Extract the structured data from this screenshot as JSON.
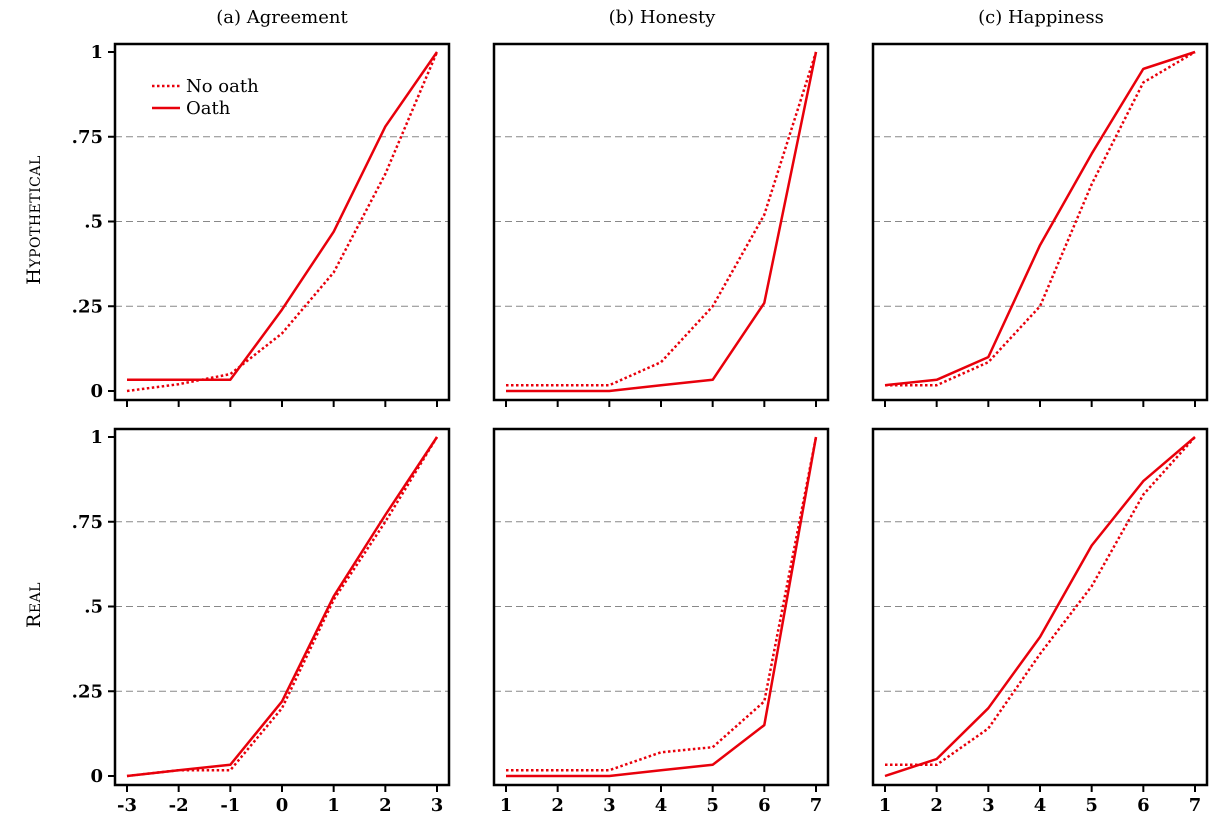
{
  "colors": {
    "series": "#e8000b",
    "grid": "#888888",
    "axis": "#000000"
  },
  "legend": {
    "position": "top-left",
    "entries": [
      {
        "label": "No oath",
        "style": "dotted"
      },
      {
        "label": "Oath",
        "style": "solid"
      }
    ]
  },
  "column_titles": [
    "(a) Agreement",
    "(b) Honesty",
    "(c) Happiness"
  ],
  "row_titles": [
    "Hypothetical",
    "Real"
  ],
  "y_tick_labels": [
    "0",
    ".25",
    ".5",
    ".75",
    "1"
  ],
  "chart_data": [
    {
      "type": "line",
      "title": "(a) Agreement",
      "row": "Hypothetical",
      "x": [
        -3,
        -2,
        -1,
        0,
        1,
        2,
        3
      ],
      "x_tick_labels": [
        "-3",
        "-2",
        "-1",
        "0",
        "1",
        "2",
        "3"
      ],
      "ylim": [
        0,
        1
      ],
      "grid": "horizontal dashed",
      "series": [
        {
          "name": "No oath",
          "style": "dotted",
          "values": [
            0.0,
            0.02,
            0.05,
            0.17,
            0.35,
            0.64,
            1.0
          ]
        },
        {
          "name": "Oath",
          "style": "solid",
          "values": [
            0.033,
            0.033,
            0.033,
            0.24,
            0.47,
            0.78,
            1.0
          ]
        }
      ]
    },
    {
      "type": "line",
      "title": "(b) Honesty",
      "row": "Hypothetical",
      "x": [
        1,
        2,
        3,
        4,
        5,
        6,
        7
      ],
      "x_tick_labels": [
        "1",
        "2",
        "3",
        "4",
        "5",
        "6",
        "7"
      ],
      "ylim": [
        0,
        1
      ],
      "grid": "horizontal dashed",
      "series": [
        {
          "name": "No oath",
          "style": "dotted",
          "values": [
            0.017,
            0.017,
            0.017,
            0.085,
            0.25,
            0.52,
            1.0
          ]
        },
        {
          "name": "Oath",
          "style": "solid",
          "values": [
            0.0,
            0.0,
            0.0,
            0.017,
            0.033,
            0.26,
            1.0
          ]
        }
      ]
    },
    {
      "type": "line",
      "title": "(c) Happiness",
      "row": "Hypothetical",
      "x": [
        1,
        2,
        3,
        4,
        5,
        6,
        7
      ],
      "x_tick_labels": [
        "1",
        "2",
        "3",
        "4",
        "5",
        "6",
        "7"
      ],
      "ylim": [
        0,
        1
      ],
      "grid": "horizontal dashed",
      "series": [
        {
          "name": "No oath",
          "style": "dotted",
          "values": [
            0.017,
            0.017,
            0.085,
            0.25,
            0.61,
            0.91,
            1.0
          ]
        },
        {
          "name": "Oath",
          "style": "solid",
          "values": [
            0.017,
            0.033,
            0.1,
            0.43,
            0.7,
            0.95,
            1.0
          ]
        }
      ]
    },
    {
      "type": "line",
      "title": "(a) Agreement",
      "row": "Real",
      "x": [
        -3,
        -2,
        -1,
        0,
        1,
        2,
        3
      ],
      "x_tick_labels": [
        "-3",
        "-2",
        "-1",
        "0",
        "1",
        "2",
        "3"
      ],
      "ylim": [
        0,
        1
      ],
      "grid": "horizontal dashed",
      "series": [
        {
          "name": "No oath",
          "style": "dotted",
          "values": [
            0.0,
            0.017,
            0.017,
            0.2,
            0.52,
            0.75,
            1.0
          ]
        },
        {
          "name": "Oath",
          "style": "solid",
          "values": [
            0.0,
            0.017,
            0.033,
            0.22,
            0.53,
            0.77,
            1.0
          ]
        }
      ]
    },
    {
      "type": "line",
      "title": "(b) Honesty",
      "row": "Real",
      "x": [
        1,
        2,
        3,
        4,
        5,
        6,
        7
      ],
      "x_tick_labels": [
        "1",
        "2",
        "3",
        "4",
        "5",
        "6",
        "7"
      ],
      "ylim": [
        0,
        1
      ],
      "grid": "horizontal dashed",
      "series": [
        {
          "name": "No oath",
          "style": "dotted",
          "values": [
            0.017,
            0.017,
            0.017,
            0.07,
            0.085,
            0.22,
            1.0
          ]
        },
        {
          "name": "Oath",
          "style": "solid",
          "values": [
            0.0,
            0.0,
            0.0,
            0.017,
            0.033,
            0.15,
            1.0
          ]
        }
      ]
    },
    {
      "type": "line",
      "title": "(c) Happiness",
      "row": "Real",
      "x": [
        1,
        2,
        3,
        4,
        5,
        6,
        7
      ],
      "x_tick_labels": [
        "1",
        "2",
        "3",
        "4",
        "5",
        "6",
        "7"
      ],
      "ylim": [
        0,
        1
      ],
      "grid": "horizontal dashed",
      "series": [
        {
          "name": "No oath",
          "style": "dotted",
          "values": [
            0.033,
            0.033,
            0.14,
            0.36,
            0.56,
            0.83,
            1.0
          ]
        },
        {
          "name": "Oath",
          "style": "solid",
          "values": [
            0.0,
            0.05,
            0.2,
            0.41,
            0.68,
            0.87,
            1.0
          ]
        }
      ]
    }
  ]
}
